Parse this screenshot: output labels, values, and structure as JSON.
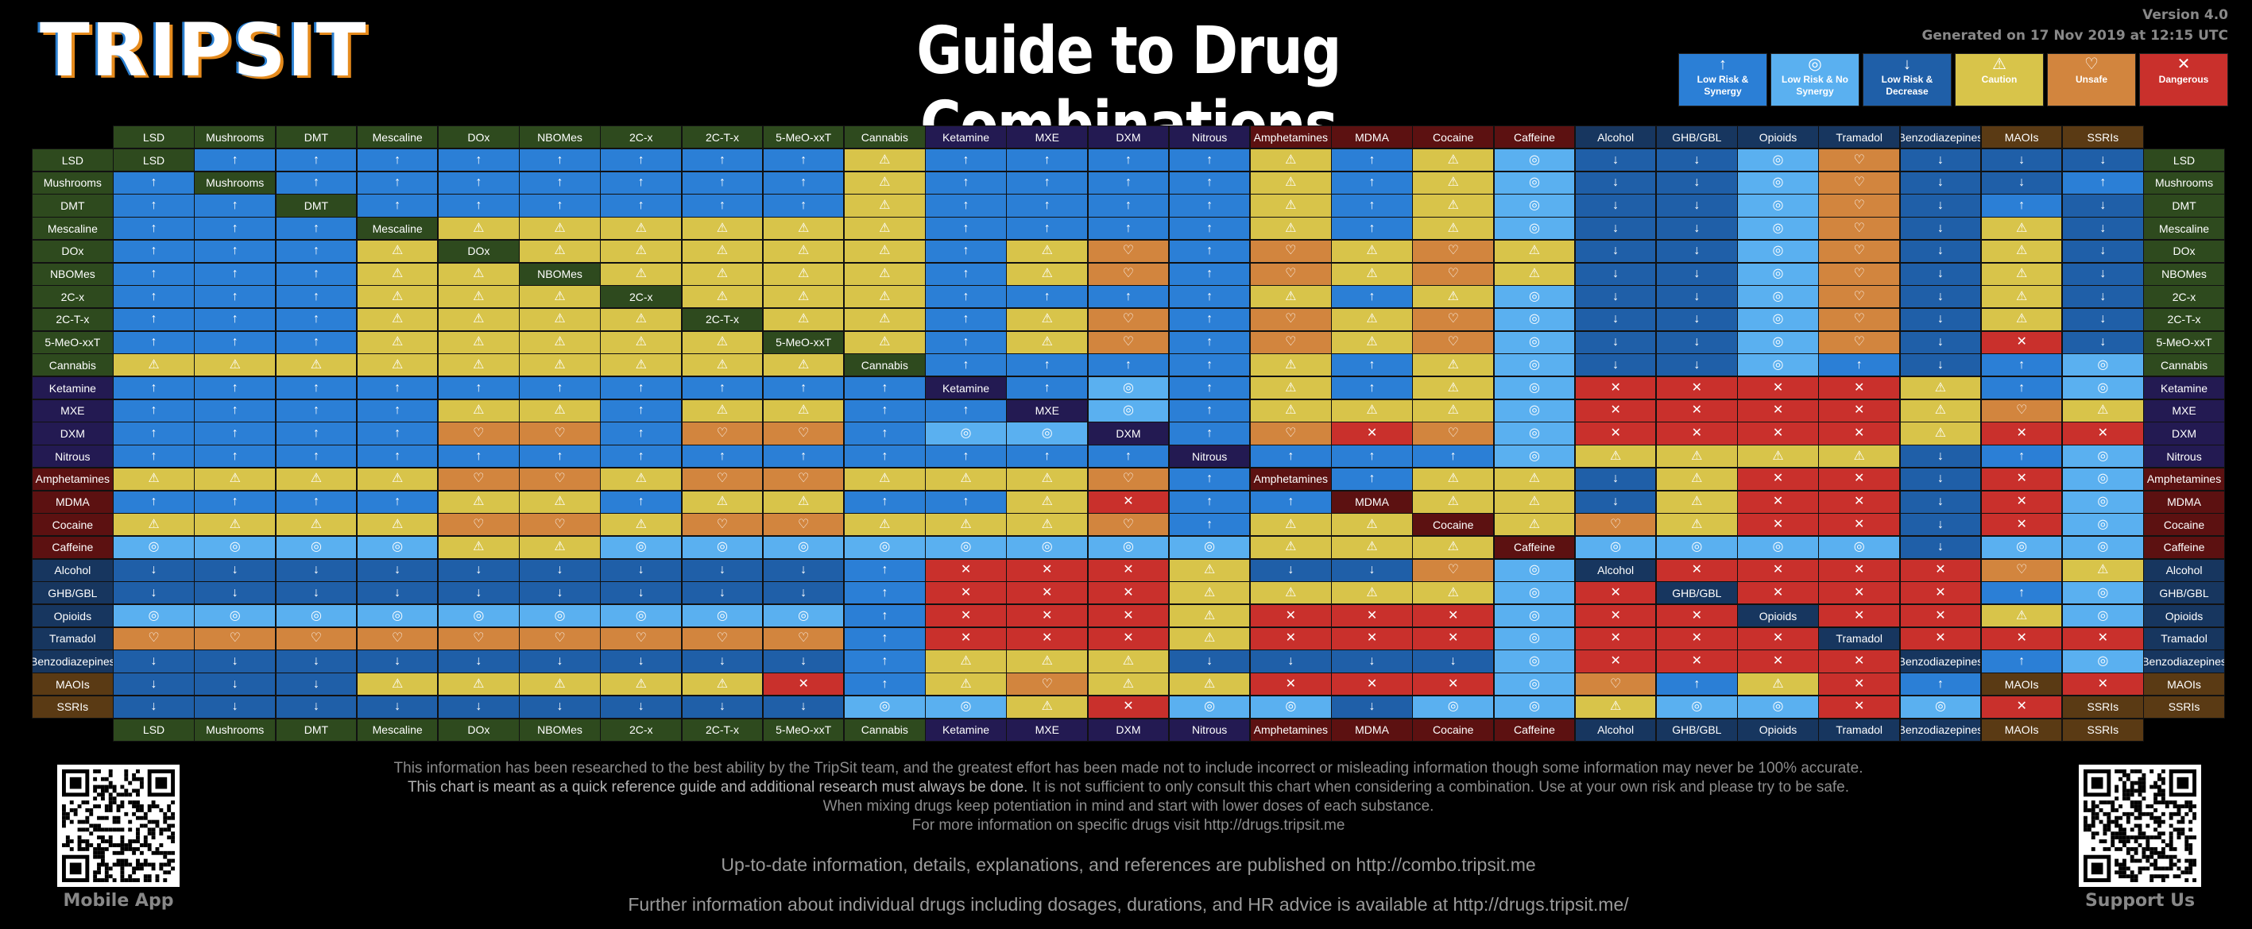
{
  "header": {
    "logo_text": "TRIPSIT",
    "title": "Guide to Drug Combinations",
    "version": "Version 4.0",
    "generated": "Generated on 17 Nov 2019 at 12:15 UTC"
  },
  "colors": {
    "lowsyn": "#2b7fd6",
    "lownosyn": "#5ab0f0",
    "lowdec": "#1f5fa8",
    "caution": "#d8c44a",
    "unsafe": "#d2853e",
    "dangerous": "#c9302c",
    "label_psychedelic": "#2e4a1e",
    "label_dissociative": "#231a52",
    "label_stimulant": "#5c1111",
    "label_depressant": "#17365f",
    "label_other": "#5a3a14"
  },
  "legend": [
    {
      "key": "lowsyn",
      "icon": "up-arrow-icon",
      "glyph": "↑",
      "label": "Low Risk & Synergy"
    },
    {
      "key": "lownosyn",
      "icon": "circle-dot-icon",
      "glyph": "◎",
      "label": "Low Risk & No Synergy"
    },
    {
      "key": "lowdec",
      "icon": "down-arrow-icon",
      "glyph": "↓",
      "label": "Low Risk & Decrease"
    },
    {
      "key": "caution",
      "icon": "warning-icon",
      "glyph": "⚠",
      "label": "Caution"
    },
    {
      "key": "unsafe",
      "icon": "heart-icon",
      "glyph": "♡",
      "label": "Unsafe"
    },
    {
      "key": "dangerous",
      "icon": "x-icon",
      "glyph": "✕",
      "label": "Dangerous"
    }
  ],
  "chart_data": {
    "type": "table",
    "title": "Guide to Drug Combinations",
    "legend_placement": "top-right",
    "drugs": [
      {
        "name": "LSD",
        "group": "label_psychedelic"
      },
      {
        "name": "Mushrooms",
        "group": "label_psychedelic"
      },
      {
        "name": "DMT",
        "group": "label_psychedelic"
      },
      {
        "name": "Mescaline",
        "group": "label_psychedelic"
      },
      {
        "name": "DOx",
        "group": "label_psychedelic"
      },
      {
        "name": "NBOMes",
        "group": "label_psychedelic"
      },
      {
        "name": "2C-x",
        "group": "label_psychedelic"
      },
      {
        "name": "2C-T-x",
        "group": "label_psychedelic"
      },
      {
        "name": "5-MeO-xxT",
        "group": "label_psychedelic"
      },
      {
        "name": "Cannabis",
        "group": "label_psychedelic"
      },
      {
        "name": "Ketamine",
        "group": "label_dissociative"
      },
      {
        "name": "MXE",
        "group": "label_dissociative"
      },
      {
        "name": "DXM",
        "group": "label_dissociative"
      },
      {
        "name": "Nitrous",
        "group": "label_dissociative"
      },
      {
        "name": "Amphetamines",
        "group": "label_stimulant"
      },
      {
        "name": "MDMA",
        "group": "label_stimulant"
      },
      {
        "name": "Cocaine",
        "group": "label_stimulant"
      },
      {
        "name": "Caffeine",
        "group": "label_stimulant"
      },
      {
        "name": "Alcohol",
        "group": "label_depressant"
      },
      {
        "name": "GHB/GBL",
        "group": "label_depressant"
      },
      {
        "name": "Opioids",
        "group": "label_depressant"
      },
      {
        "name": "Tramadol",
        "group": "label_depressant"
      },
      {
        "name": "Benzodiazepines",
        "group": "label_depressant"
      },
      {
        "name": "MAOIs",
        "group": "label_other"
      },
      {
        "name": "SSRIs",
        "group": "label_other"
      }
    ],
    "code_key": {
      "S": "lowsyn",
      "N": "lownosyn",
      "D": "lowdec",
      "C": "caution",
      "U": "unsafe",
      "X": "dangerous",
      "-": "self"
    },
    "matrix": [
      "-SSSSSSSSCSSSSCSCNDDNUDDD",
      "S-SSSSSSSCSSSSCSCNDDNUDDS",
      "SS-SSSSSSCSSSSCSCNDDNUDSD",
      "SSS-CCCCCCSSSSCSCNDDNUDCD",
      "SSSC-CCCCCSCUSUCUCDDNUDCD",
      "SSSCC-CCCCSCUSUCUCDDNUDCD",
      "SSSCCC-CCCSSSSCSCNDDNUDCD",
      "SSSCCCC-CCSCUSUCUNDDNUDCD",
      "SSSCCCCC-CSCUSUCUNDDNUDXD",
      "CCCCCCCCC-SSSSCSCNDDNSDSN",
      "SSSSSSSSSS-SNSCSCNXXXXCSN",
      "SSSSCCSCCSS-NSCCCNXXXXCUC",
      "SSSSUUSUUSNN-SUXUNXXXXCXX",
      "SSSSSSSSSSSSS-SSSNCCCCDSN",
      "CCCCUUCUUCCCUS-SCCDCXXDXN",
      "SSSSCCSCCSSCXSS-CCDCXXDXN",
      "CCCCUUCUUCCCUSCC-CUCXXDXN",
      "NNNNCCNNNNNNNNCCC-NNNNDNN",
      "DDDDDDDDDSXXXCDDUN-XXXXUC",
      "DDDDDDDDDSXXXCCCCNX-XXXSN",
      "NNNNNNNNNSXXXCXXXNXX-XXCN",
      "UUUUUUUUUSXXXCXXXNXXX-XXX",
      "DDDDDDDDDSCCCDDDDNXXXX-SN",
      "DDDCCCCCXSCUCCXXXNUSCXS-X",
      "DDDDDDDDDNNCXNNDNNCNNXNX-"
    ]
  },
  "info": {
    "line1": "This information has been researched to the best ability by the TripSit team, and the greatest effort has been made not to include incorrect or misleading information though some information may never be 100% accurate.",
    "line2_strong": "This chart is meant as a quick reference guide and additional research must always be done.",
    "line2_rest": " It is not sufficient to only consult this chart when considering a combination. Use at your own risk and please try to be safe.",
    "line3": "When mixing drugs keep potentiation in mind and start with lower doses of each substance.",
    "line4": "For more information on specific drugs visit http://drugs.tripsit.me",
    "line5": "Up-to-date information, details, explanations, and references are published on http://combo.tripsit.me",
    "line6": "Further information about individual drugs including dosages, durations, and HR advice is available at http://drugs.tripsit.me/"
  },
  "qr": {
    "left_label": "Mobile App",
    "right_label": "Support Us"
  }
}
